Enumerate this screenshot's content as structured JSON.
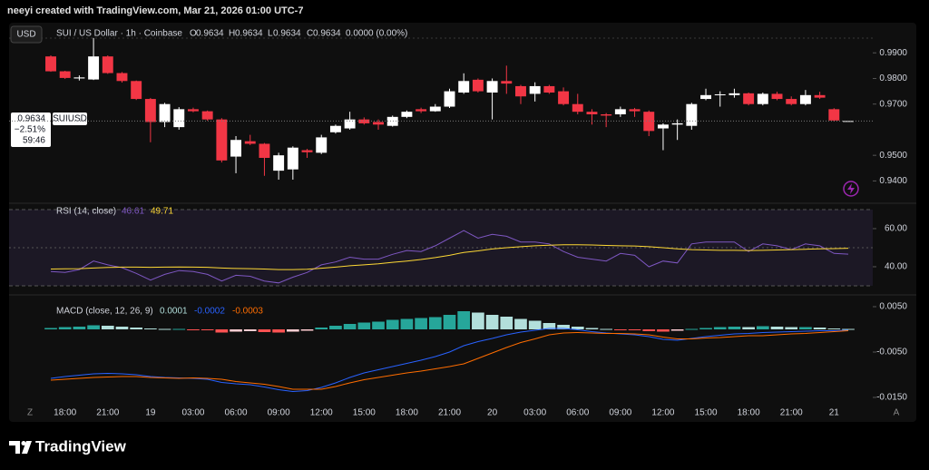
{
  "header": {
    "text": "neeyi created with TradingView.com, Mar 21, 2026 01:00 UTC-7"
  },
  "toolbar": {
    "currency": "USD",
    "symbol": "SUI / US Dollar · 1h · Coinbase",
    "ohlc_letters": [
      "O",
      "H",
      "L",
      "C"
    ],
    "change": "0.0000 (0.00%)"
  },
  "price_badge": {
    "change": "−2.51%",
    "countdown": "59:46",
    "symbol": "SUIUSD"
  },
  "footer": {
    "buttons": [
      "Z",
      "A"
    ],
    "brand": "TradingView"
  },
  "chart_data": [
    {
      "type": "candlestick",
      "open": [
        0.9886,
        0.9828,
        0.98,
        0.9796,
        0.9886,
        0.9821,
        0.979,
        0.972,
        0.963,
        0.961,
        0.968,
        0.9672,
        0.964,
        0.9495,
        0.9555,
        0.9545,
        0.944,
        0.9445,
        0.952,
        0.951,
        0.959,
        0.9605,
        0.964,
        0.963,
        0.9615,
        0.965,
        0.968,
        0.9672,
        0.969,
        0.9745,
        0.9795,
        0.9745,
        0.979,
        0.977,
        0.974,
        0.977,
        0.975,
        0.97,
        0.967,
        0.966,
        0.966,
        0.968,
        0.967,
        0.9605,
        0.962,
        0.9615,
        0.972,
        0.9735,
        0.9735,
        0.9742,
        0.97,
        0.974,
        0.972,
        0.97,
        0.9735,
        0.968,
        0.9634
      ],
      "high": [
        0.989,
        0.983,
        0.9812,
        0.9958,
        0.989,
        0.9825,
        0.9792,
        0.9724,
        0.9705,
        0.9688,
        0.9686,
        0.9675,
        0.9645,
        0.9575,
        0.958,
        0.9548,
        0.951,
        0.9535,
        0.9525,
        0.958,
        0.962,
        0.967,
        0.9648,
        0.964,
        0.9655,
        0.9675,
        0.9686,
        0.97,
        0.976,
        0.982,
        0.98,
        0.98,
        0.985,
        0.9775,
        0.9785,
        0.9775,
        0.9765,
        0.974,
        0.968,
        0.9665,
        0.969,
        0.9685,
        0.9675,
        0.9625,
        0.964,
        0.9705,
        0.976,
        0.975,
        0.976,
        0.9745,
        0.9745,
        0.9748,
        0.973,
        0.9755,
        0.9748,
        0.9684,
        0.9634
      ],
      "low": [
        0.9826,
        0.9798,
        0.9792,
        0.9794,
        0.9818,
        0.9784,
        0.9716,
        0.9551,
        0.961,
        0.96,
        0.9668,
        0.9635,
        0.9472,
        0.943,
        0.954,
        0.942,
        0.9405,
        0.9405,
        0.949,
        0.9505,
        0.9585,
        0.96,
        0.962,
        0.96,
        0.9612,
        0.9645,
        0.9665,
        0.967,
        0.9685,
        0.974,
        0.9745,
        0.964,
        0.974,
        0.97,
        0.971,
        0.974,
        0.9695,
        0.966,
        0.962,
        0.961,
        0.965,
        0.965,
        0.9575,
        0.952,
        0.956,
        0.96,
        0.9715,
        0.969,
        0.9725,
        0.9695,
        0.9695,
        0.9715,
        0.9695,
        0.9695,
        0.972,
        0.9632,
        0.9634
      ],
      "close": [
        0.9828,
        0.9802,
        0.9804,
        0.9886,
        0.9821,
        0.979,
        0.972,
        0.963,
        0.97,
        0.968,
        0.9672,
        0.964,
        0.948,
        0.956,
        0.9545,
        0.949,
        0.95,
        0.953,
        0.9512,
        0.957,
        0.9615,
        0.964,
        0.9625,
        0.962,
        0.965,
        0.967,
        0.9672,
        0.969,
        0.975,
        0.979,
        0.975,
        0.979,
        0.978,
        0.973,
        0.977,
        0.9745,
        0.97,
        0.967,
        0.966,
        0.9655,
        0.968,
        0.9672,
        0.9595,
        0.962,
        0.9625,
        0.97,
        0.9735,
        0.9738,
        0.9742,
        0.97,
        0.974,
        0.972,
        0.97,
        0.9735,
        0.9725,
        0.9636,
        0.9634
      ],
      "up_color": "#ffffff",
      "down_color": "#f23645",
      "ylim": [
        0.932,
        1.0
      ],
      "yticks": [
        {
          "value": 0.99,
          "label": "0.9900"
        },
        {
          "value": 0.98,
          "label": "0.9800"
        },
        {
          "value": 0.97,
          "label": "0.9700"
        },
        {
          "value": 0.95,
          "label": "0.9500"
        },
        {
          "value": 0.94,
          "label": "0.9400"
        }
      ],
      "xticks": [
        {
          "value": 1,
          "label": "18:00"
        },
        {
          "value": 4,
          "label": "21:00"
        },
        {
          "value": 7,
          "label": "19"
        },
        {
          "value": 10,
          "label": "03:00"
        },
        {
          "value": 13,
          "label": "06:00"
        },
        {
          "value": 16,
          "label": "09:00"
        },
        {
          "value": 19,
          "label": "12:00"
        },
        {
          "value": 22,
          "label": "15:00"
        },
        {
          "value": 25,
          "label": "18:00"
        },
        {
          "value": 28,
          "label": "21:00"
        },
        {
          "value": 31,
          "label": "20"
        },
        {
          "value": 34,
          "label": "03:00"
        },
        {
          "value": 37,
          "label": "06:00"
        },
        {
          "value": 40,
          "label": "09:00"
        },
        {
          "value": 43,
          "label": "12:00"
        },
        {
          "value": 46,
          "label": "15:00"
        },
        {
          "value": 49,
          "label": "18:00"
        },
        {
          "value": 52,
          "label": "21:00"
        },
        {
          "value": 55,
          "label": "21"
        }
      ]
    },
    {
      "type": "rsi",
      "title": "RSI (14, close)",
      "series": [
        {
          "color": "#7e57c2",
          "values": [
            37.5,
            37,
            38.5,
            43,
            41,
            39.5,
            36.5,
            33,
            36,
            38,
            37.5,
            36,
            32.5,
            35.5,
            35,
            32.5,
            31.5,
            34.5,
            37,
            41,
            42.5,
            45,
            44,
            44,
            46.5,
            48.5,
            48,
            51,
            55,
            59,
            55,
            57,
            56,
            53,
            53,
            52,
            48,
            45,
            44,
            43,
            47,
            46,
            40,
            43,
            42,
            52,
            53,
            53,
            53,
            48,
            52,
            51,
            49,
            52,
            51,
            47,
            46.61
          ]
        },
        {
          "color": "#fdd835",
          "values": [
            38.8,
            38.9,
            39,
            39.3,
            39.6,
            39.8,
            39.8,
            39.7,
            39.8,
            39.9,
            39.8,
            39.7,
            39.3,
            39.1,
            39,
            38.8,
            38.5,
            38.5,
            38.7,
            39.2,
            39.8,
            40.5,
            41,
            41.5,
            42.3,
            43,
            43.8,
            44.8,
            46,
            47.5,
            48.3,
            49.3,
            50,
            50.5,
            51,
            51.3,
            51.5,
            51.5,
            51.4,
            51.2,
            51,
            50.9,
            50.5,
            50,
            49.4,
            49,
            48.8,
            48.6,
            48.6,
            48.5,
            48.6,
            48.8,
            49,
            49.2,
            49.4,
            49.5,
            49.71
          ]
        }
      ],
      "ylim": [
        27.6,
        71.9
      ],
      "yticks": [
        {
          "value": 60,
          "label": "60.00"
        },
        {
          "value": 40,
          "label": "40.00"
        }
      ],
      "band": [
        70,
        30
      ],
      "midline": 50,
      "band_color": "#7e57c2"
    },
    {
      "type": "macd",
      "title": "MACD (close, 12, 26, 9)",
      "histogram": {
        "values": [
          0.0003,
          0.0005,
          0.0006,
          0.0009,
          0.0008,
          0.0006,
          0.0004,
          0.0002,
          0.0001,
          0.0001,
          -0.0001,
          -0.0002,
          -0.0007,
          -0.0005,
          -0.0004,
          -0.0006,
          -0.0007,
          -0.0005,
          -0.0003,
          0.0004,
          0.0008,
          0.0012,
          0.0015,
          0.0017,
          0.0021,
          0.0023,
          0.0025,
          0.0027,
          0.0032,
          0.004,
          0.0037,
          0.0032,
          0.0028,
          0.0023,
          0.0019,
          0.0014,
          0.001,
          0.0006,
          0.0003,
          0.0001,
          -0.0001,
          -0.0002,
          -0.0004,
          -0.0005,
          -0.0003,
          0.0001,
          0.0003,
          0.0005,
          0.0006,
          0.0005,
          0.0007,
          0.0006,
          0.0005,
          0.0005,
          0.0004,
          0.0002,
          0.0001
        ],
        "colors": [
          "#26a69a",
          "#b2dfdb",
          "#ff5252",
          "#ffcdd2"
        ]
      },
      "series": [
        {
          "color": "#2962ff",
          "values": [
            -0.0108,
            -0.0104,
            -0.0101,
            -0.0098,
            -0.0097,
            -0.0098,
            -0.01,
            -0.0104,
            -0.0106,
            -0.0107,
            -0.0108,
            -0.011,
            -0.0117,
            -0.012,
            -0.0122,
            -0.0127,
            -0.0133,
            -0.0137,
            -0.0135,
            -0.0128,
            -0.0118,
            -0.0106,
            -0.0096,
            -0.0089,
            -0.0082,
            -0.0075,
            -0.0068,
            -0.006,
            -0.005,
            -0.0036,
            -0.0027,
            -0.002,
            -0.0012,
            -0.0006,
            -0.0002,
            0.0002,
            0.0002,
            -0.0001,
            -0.0005,
            -0.0008,
            -0.001,
            -0.0012,
            -0.0016,
            -0.0022,
            -0.0024,
            -0.002,
            -0.0016,
            -0.0013,
            -0.001,
            -0.0009,
            -0.0007,
            -0.0006,
            -0.0005,
            -0.0004,
            -0.0003,
            -0.0003,
            -0.0002
          ]
        },
        {
          "color": "#ff6d00",
          "values": [
            -0.0112,
            -0.011,
            -0.0108,
            -0.0106,
            -0.0105,
            -0.0104,
            -0.0104,
            -0.0106,
            -0.0107,
            -0.0108,
            -0.0107,
            -0.0108,
            -0.011,
            -0.0115,
            -0.0118,
            -0.0121,
            -0.0126,
            -0.0132,
            -0.0132,
            -0.0132,
            -0.0126,
            -0.0118,
            -0.0111,
            -0.0106,
            -0.0101,
            -0.0096,
            -0.0092,
            -0.0087,
            -0.0082,
            -0.0076,
            -0.0064,
            -0.0052,
            -0.004,
            -0.0029,
            -0.0021,
            -0.0012,
            -0.0008,
            -0.0007,
            -0.0008,
            -0.0009,
            -0.0009,
            -0.001,
            -0.0012,
            -0.0017,
            -0.0021,
            -0.0021,
            -0.0019,
            -0.0018,
            -0.0016,
            -0.0014,
            -0.0014,
            -0.0012,
            -0.001,
            -0.0009,
            -0.0007,
            -0.0005,
            -0.0003
          ]
        }
      ],
      "ylim": [
        -0.0178,
        0.0066
      ],
      "yticks": [
        {
          "value": 0.005,
          "label": "0.0050"
        },
        {
          "value": -0.005,
          "label": "-0.0050"
        },
        {
          "value": -0.015,
          "label": "-0.0150"
        }
      ]
    }
  ]
}
